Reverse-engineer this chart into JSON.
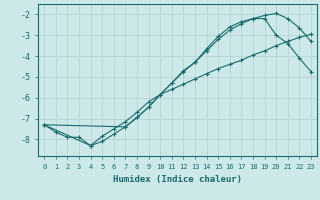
{
  "xlabel": "Humidex (Indice chaleur)",
  "ylabel": "",
  "bg_color": "#cce8e8",
  "grid_color": "#b8d8d8",
  "line_color": "#1a6b6b",
  "xlim": [
    -0.5,
    23.5
  ],
  "ylim": [
    -8.8,
    -1.5
  ],
  "yticks": [
    -8,
    -7,
    -6,
    -5,
    -4,
    -3,
    -2
  ],
  "xticks": [
    0,
    1,
    2,
    3,
    4,
    5,
    6,
    7,
    8,
    9,
    10,
    11,
    12,
    13,
    14,
    15,
    16,
    17,
    18,
    19,
    20,
    21,
    22,
    23
  ],
  "series1_x": [
    0,
    1,
    2,
    3,
    4,
    5,
    6,
    7,
    8,
    9,
    10,
    11,
    12,
    13,
    14,
    15,
    16,
    17,
    18,
    19,
    20,
    21,
    22,
    23
  ],
  "series1_y": [
    -7.3,
    -7.65,
    -7.9,
    -7.9,
    -8.3,
    -7.85,
    -7.5,
    -7.15,
    -6.7,
    -6.2,
    -5.85,
    -5.6,
    -5.35,
    -5.1,
    -4.85,
    -4.6,
    -4.4,
    -4.2,
    -3.95,
    -3.75,
    -3.5,
    -3.3,
    -3.1,
    -2.95
  ],
  "series2_x": [
    0,
    4,
    5,
    6,
    7,
    8,
    9,
    10,
    11,
    12,
    13,
    14,
    15,
    16,
    17,
    18,
    19,
    20,
    21,
    22,
    23
  ],
  "series2_y": [
    -7.3,
    -8.3,
    -8.1,
    -7.75,
    -7.4,
    -6.95,
    -6.45,
    -5.85,
    -5.3,
    -4.75,
    -4.3,
    -3.75,
    -3.2,
    -2.75,
    -2.45,
    -2.2,
    -2.05,
    -1.95,
    -2.2,
    -2.65,
    -3.3
  ],
  "series3_x": [
    0,
    7,
    8,
    9,
    10,
    11,
    12,
    13,
    14,
    15,
    16,
    17,
    18,
    19,
    20,
    21,
    22,
    23
  ],
  "series3_y": [
    -7.3,
    -7.4,
    -6.95,
    -6.45,
    -5.85,
    -5.3,
    -4.7,
    -4.3,
    -3.65,
    -3.05,
    -2.6,
    -2.35,
    -2.2,
    -2.2,
    -3.0,
    -3.4,
    -4.1,
    -4.75
  ]
}
